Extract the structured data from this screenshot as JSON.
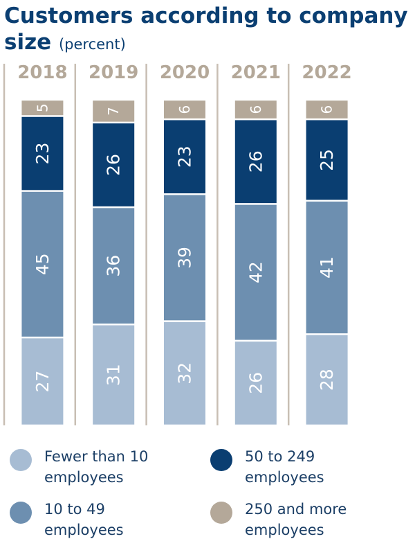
{
  "title": "Customers according to company size",
  "unit": "(percent)",
  "colors": {
    "lt10": "#a7bcd3",
    "10to49": "#6d8fb0",
    "50to249": "#0a3e71",
    "250plus": "#b4a899",
    "year": "#b4a899",
    "divider": "#c8beb3"
  },
  "chart_data": {
    "type": "bar",
    "stacked": true,
    "orientation": "vertical",
    "categories": [
      "2018",
      "2019",
      "2020",
      "2021",
      "2022"
    ],
    "series": [
      {
        "name": "Fewer than 10 employees",
        "key": "lt10",
        "values": [
          27,
          31,
          32,
          26,
          28
        ]
      },
      {
        "name": "10 to 49 employees",
        "key": "10to49",
        "values": [
          45,
          36,
          39,
          42,
          41
        ]
      },
      {
        "name": "50 to 249 employees",
        "key": "50to249",
        "values": [
          23,
          26,
          23,
          26,
          25
        ]
      },
      {
        "name": "250 and more employees",
        "key": "250plus",
        "values": [
          5,
          7,
          6,
          6,
          6
        ]
      }
    ],
    "ylim": [
      0,
      100
    ]
  },
  "legend": [
    {
      "label": "Fewer than 10 employees",
      "key": "lt10"
    },
    {
      "label": "50 to 249 employees",
      "key": "50to249"
    },
    {
      "label": "10 to 49 employees",
      "key": "10to49"
    },
    {
      "label": "250 and more employees",
      "key": "250plus"
    }
  ]
}
